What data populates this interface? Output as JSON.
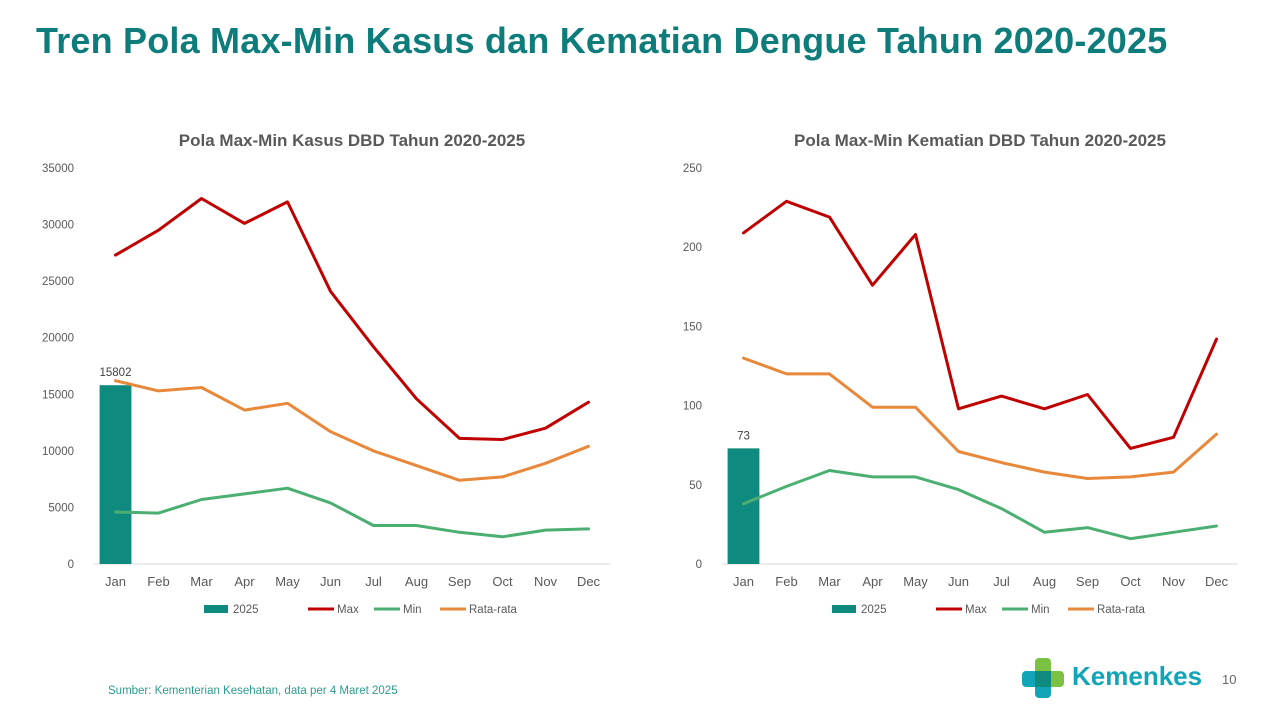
{
  "header": {
    "title": "Tren Pola Max-Min Kasus dan Kematian Dengue Tahun 2020-2025"
  },
  "footer": {
    "source": "Sumber: Kementerian Kesehatan, data per 4 Maret 2025",
    "logo_text": "Kemenkes",
    "page_number": "10"
  },
  "colors": {
    "title": "#0e7c7b",
    "bar_2025": "#0e8a7e",
    "max": "#c00000",
    "min": "#4caf72",
    "avg": "#e8883a",
    "axis_text": "#595959",
    "source_text": "#2e9b8f",
    "logo_text": "#12a5b8"
  },
  "chart_data": [
    {
      "type": "bar",
      "title": "Pola Max-Min Kasus DBD Tahun 2020-2025",
      "categories": [
        "Jan",
        "Feb",
        "Mar",
        "Apr",
        "May",
        "Jun",
        "Jul",
        "Aug",
        "Sep",
        "Oct",
        "Nov",
        "Dec"
      ],
      "ylim": [
        0,
        35000
      ],
      "yticks": [
        0,
        5000,
        10000,
        15000,
        20000,
        25000,
        30000,
        35000
      ],
      "grid": false,
      "legend_position": "bottom",
      "series": [
        {
          "name": "2025",
          "kind": "bar",
          "values": [
            15802,
            null,
            null,
            null,
            null,
            null,
            null,
            null,
            null,
            null,
            null,
            null
          ],
          "data_labels": [
            "15802"
          ]
        },
        {
          "name": "Max",
          "kind": "line",
          "values": [
            27300,
            29500,
            32300,
            30100,
            32000,
            24100,
            19200,
            14600,
            11100,
            11000,
            12000,
            14300
          ]
        },
        {
          "name": "Min",
          "kind": "line",
          "values": [
            4600,
            4500,
            5700,
            6200,
            6700,
            5400,
            3400,
            3400,
            2800,
            2400,
            3000,
            3100
          ]
        },
        {
          "name": "Rata-rata",
          "kind": "line",
          "values": [
            16200,
            15300,
            15600,
            13600,
            14200,
            11700,
            10000,
            8700,
            7400,
            7700,
            8900,
            10400
          ]
        }
      ]
    },
    {
      "type": "bar",
      "title": "Pola Max-Min Kematian DBD Tahun 2020-2025",
      "categories": [
        "Jan",
        "Feb",
        "Mar",
        "Apr",
        "May",
        "Jun",
        "Jul",
        "Aug",
        "Sep",
        "Oct",
        "Nov",
        "Dec"
      ],
      "ylim": [
        0,
        250
      ],
      "yticks": [
        0,
        50,
        100,
        150,
        200,
        250
      ],
      "grid": false,
      "legend_position": "bottom",
      "series": [
        {
          "name": "2025",
          "kind": "bar",
          "values": [
            73,
            null,
            null,
            null,
            null,
            null,
            null,
            null,
            null,
            null,
            null,
            null
          ],
          "data_labels": [
            "73"
          ]
        },
        {
          "name": "Max",
          "kind": "line",
          "values": [
            209,
            229,
            219,
            176,
            208,
            98,
            106,
            98,
            107,
            73,
            80,
            142
          ]
        },
        {
          "name": "Min",
          "kind": "line",
          "values": [
            38,
            49,
            59,
            55,
            55,
            47,
            35,
            20,
            23,
            16,
            20,
            24
          ]
        },
        {
          "name": "Rata-rata",
          "kind": "line",
          "values": [
            130,
            120,
            120,
            99,
            99,
            71,
            64,
            58,
            54,
            55,
            58,
            82
          ]
        }
      ]
    }
  ]
}
